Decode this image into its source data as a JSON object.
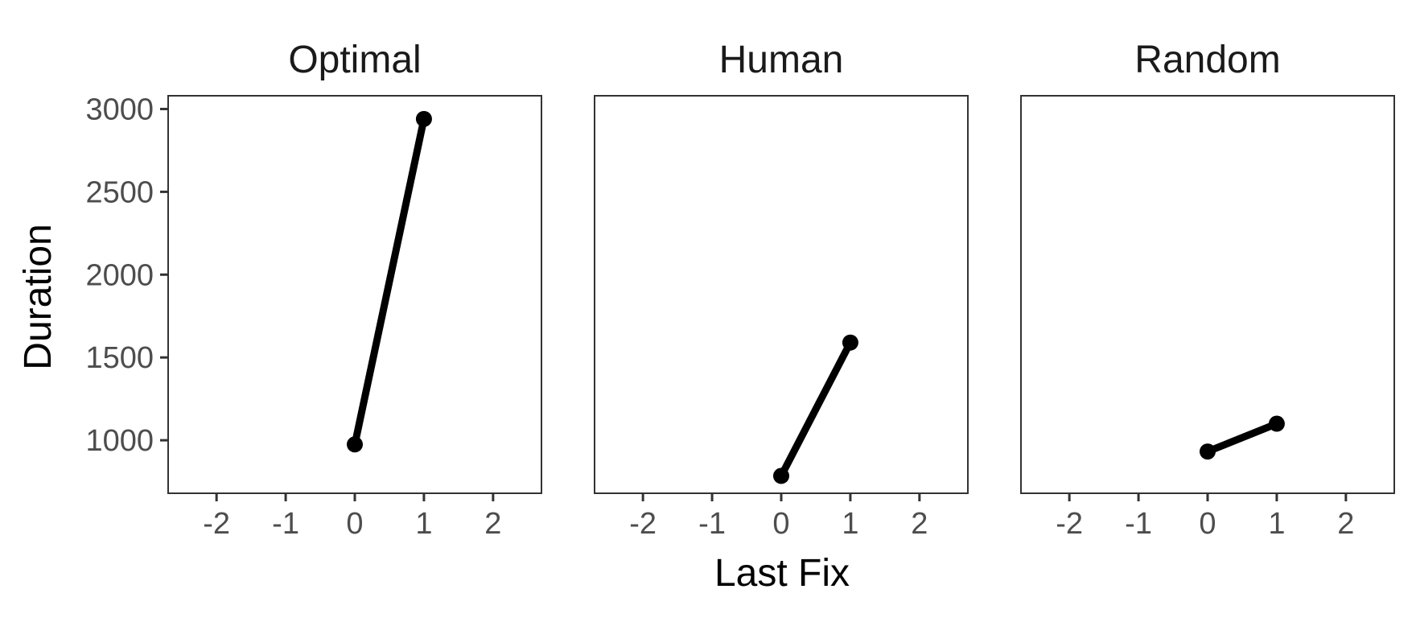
{
  "chart_data": {
    "type": "line",
    "xlabel": "Last Fix",
    "ylabel": "Duration",
    "xlim": [
      -2.7,
      2.7
    ],
    "ylim": [
      680,
      3080
    ],
    "xticks": [
      "-2",
      "-1",
      "0",
      "1",
      "2"
    ],
    "yticks": [
      "1000",
      "1500",
      "2000",
      "2500",
      "3000"
    ],
    "grid": false,
    "facets": [
      {
        "title": "Optimal",
        "x": [
          0,
          1
        ],
        "values": [
          975,
          2940
        ]
      },
      {
        "title": "Human",
        "x": [
          0,
          1
        ],
        "values": [
          785,
          1590
        ]
      },
      {
        "title": "Random",
        "x": [
          0,
          1
        ],
        "values": [
          932,
          1100
        ]
      }
    ],
    "line_color": "#000000",
    "point_color": "#000000"
  }
}
